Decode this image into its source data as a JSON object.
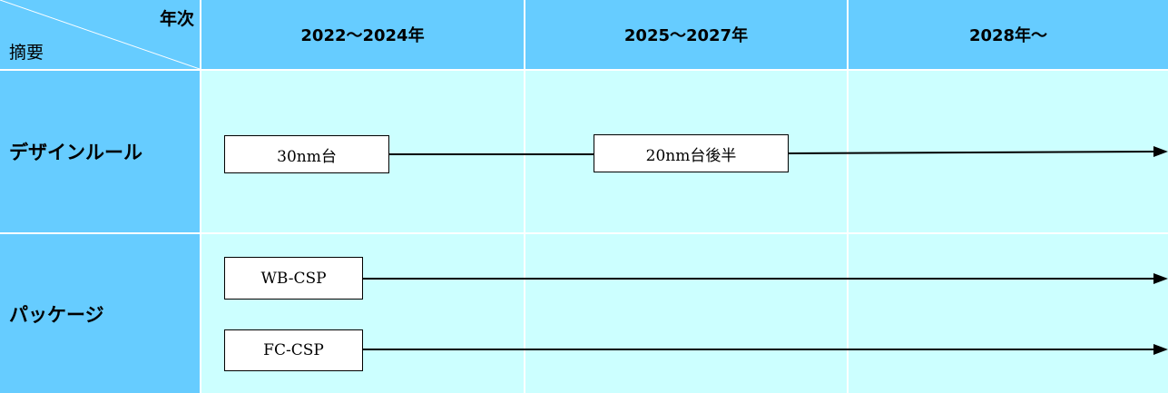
{
  "header": {
    "corner_year": "年次",
    "corner_summary": "摘要",
    "columns": [
      "2022～2024年",
      "2025～2027年",
      "2028年～"
    ]
  },
  "rows": [
    {
      "label": "デザインルール",
      "items": [
        "30nm台",
        "20nm台後半"
      ]
    },
    {
      "label": "パッケージ",
      "items": [
        "WB-CSP",
        "FC-CSP"
      ]
    }
  ],
  "colors": {
    "header_bg": "#66ccff",
    "body_bg": "#ccffff",
    "line": "#000000"
  }
}
